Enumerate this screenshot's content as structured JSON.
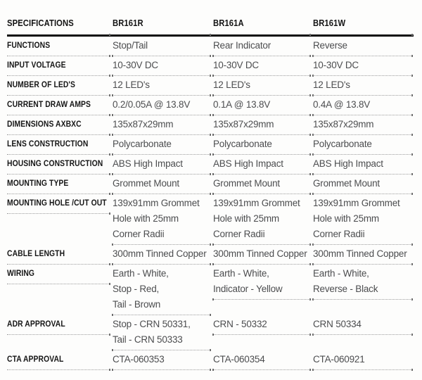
{
  "colors": {
    "background": "#fdfdfc",
    "label_text": "#161616",
    "value_text": "#4c4d4f",
    "header_rule": "#0a0a0a",
    "row_rule_dotted": "#9c9c9c"
  },
  "table": {
    "header": {
      "label": "SPECIFICATIONS",
      "columns": [
        "BR161R",
        "BR161A",
        "BR161W"
      ]
    },
    "rows": [
      {
        "label": "FUNCTIONS",
        "values": [
          [
            "Stop/Tail"
          ],
          [
            "Rear Indicator"
          ],
          [
            "Reverse"
          ]
        ]
      },
      {
        "label": "INPUT VOLTAGE",
        "values": [
          [
            "10-30V DC"
          ],
          [
            "10-30V DC"
          ],
          [
            "10-30V DC"
          ]
        ]
      },
      {
        "label": "NUMBER OF LED'S",
        "values": [
          [
            "12 LED's"
          ],
          [
            "12 LED's"
          ],
          [
            "12 LED's"
          ]
        ]
      },
      {
        "label": "CURRENT DRAW AMPS",
        "values": [
          [
            "0.2/0.05A @ 13.8V"
          ],
          [
            "0.1A @ 13.8V"
          ],
          [
            "0.4A @ 13.8V"
          ]
        ]
      },
      {
        "label": "DIMENSIONS AXBXC",
        "values": [
          [
            "135x87x29mm"
          ],
          [
            "135x87x29mm"
          ],
          [
            "135x87x29mm"
          ]
        ]
      },
      {
        "label": "LENS CONSTRUCTION",
        "values": [
          [
            "Polycarbonate"
          ],
          [
            "Polycarbonate"
          ],
          [
            "Polycarbonate"
          ]
        ]
      },
      {
        "label": "HOUSING CONSTRUCTION",
        "values": [
          [
            "ABS High Impact"
          ],
          [
            "ABS High Impact"
          ],
          [
            "ABS High Impact"
          ]
        ]
      },
      {
        "label": "MOUNTING TYPE",
        "values": [
          [
            "Grommet Mount"
          ],
          [
            "Grommet Mount"
          ],
          [
            "Grommet Mount"
          ]
        ]
      },
      {
        "label": "MOUNTING HOLE /CUT OUT",
        "values": [
          [
            "139x91mm Grommet",
            "Hole with 25mm",
            "Corner Radii"
          ],
          [
            "139x91mm Grommet",
            "Hole with 25mm",
            "Corner Radii"
          ],
          [
            "139x91mm Grommet",
            "Hole with 25mm",
            "Corner Radii"
          ]
        ]
      },
      {
        "label": "CABLE LENGTH",
        "values": [
          [
            "300mm Tinned Copper"
          ],
          [
            "300mm Tinned Copper"
          ],
          [
            "300mm Tinned Copper"
          ]
        ]
      },
      {
        "label": "WIRING",
        "values": [
          [
            "Earth - White,",
            "Stop - Red,",
            "Tail - Brown"
          ],
          [
            "Earth - White,",
            "Indicator - Yellow"
          ],
          [
            "Earth - White,",
            "Reverse - Black"
          ]
        ]
      },
      {
        "label": "ADR APPROVAL",
        "values": [
          [
            "Stop - CRN 50331,",
            "Tail - CRN 50333"
          ],
          [
            "CRN - 50332"
          ],
          [
            "CRN 50334"
          ]
        ]
      },
      {
        "label": "CTA APPROVAL",
        "values": [
          [
            "CTA-060353"
          ],
          [
            "CTA-060354"
          ],
          [
            "CTA-060921"
          ]
        ]
      }
    ]
  }
}
